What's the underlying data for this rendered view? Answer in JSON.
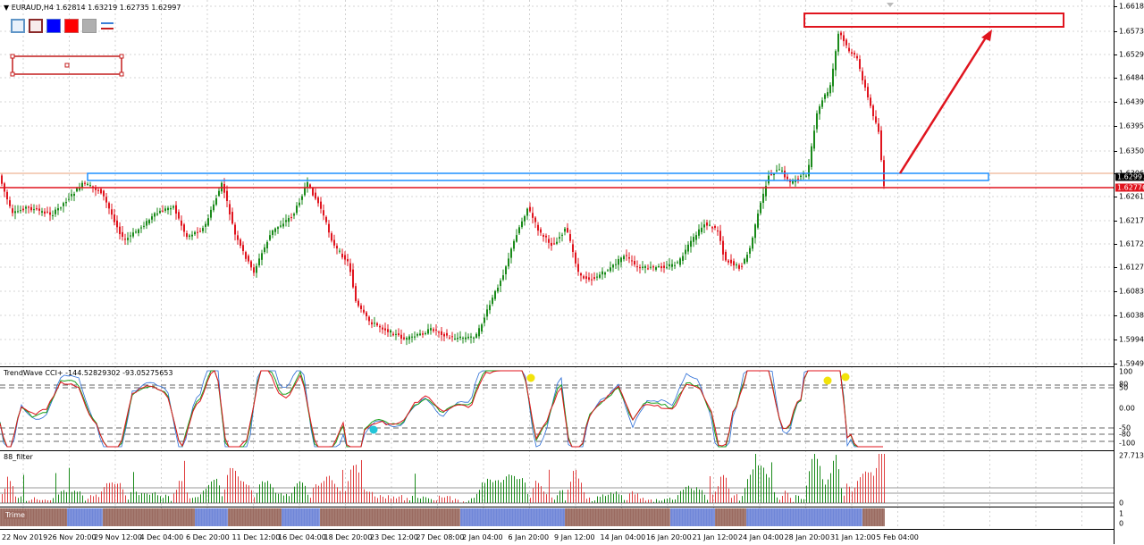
{
  "main": {
    "title": "▼ EURAUD,H4  1.62814 1.63219 1.62735 1.62997",
    "prices": [
      "1.66185",
      "1.65730",
      "1.65290",
      "1.64840",
      "1.64390",
      "1.63950",
      "1.63500",
      "1.63060",
      "1.62610",
      "1.62170",
      "1.61720",
      "1.61270",
      "1.60830",
      "1.60380",
      "1.59940",
      "1.59490"
    ],
    "current_price": "1.62997",
    "line_price": "1.62776",
    "colors": {
      "up": "#1a8a1a",
      "down": "#e0141e",
      "line": "#e0141e",
      "zone": "#1e90ff"
    }
  },
  "toolbar": {
    "icons": [
      "rect-outline-blue",
      "rect-outline-red",
      "fill-blue",
      "fill-red",
      "fill-gray",
      "line-pair"
    ]
  },
  "indicator1": {
    "title": "TrendWave  CCI+ -144.52829302 -93.05275653",
    "levels": [
      "100",
      "80",
      "50",
      "0.00",
      "-50",
      "-80",
      "-100"
    ]
  },
  "indicator2": {
    "title": "88_filter",
    "max_label": "27.7139",
    "zero_label": "0"
  },
  "indicator3": {
    "title": "Trime",
    "levels": [
      "1",
      "0"
    ]
  },
  "time_axis": [
    "22 Nov 2019",
    "26 Nov 20:00",
    "29 Nov 12:00",
    "4 Dec 04:00",
    "6 Dec 20:00",
    "11 Dec 12:00",
    "16 Dec 04:00",
    "18 Dec 20:00",
    "23 Dec 12:00",
    "27 Dec 08:00",
    "2 Jan 04:00",
    "6 Jan 20:00",
    "9 Jan 12:00",
    "14 Jan 04:00",
    "16 Jan 20:00",
    "21 Jan 12:00",
    "24 Jan 04:00",
    "28 Jan 20:00",
    "31 Jan 12:00",
    "5 Feb 04:00"
  ]
}
